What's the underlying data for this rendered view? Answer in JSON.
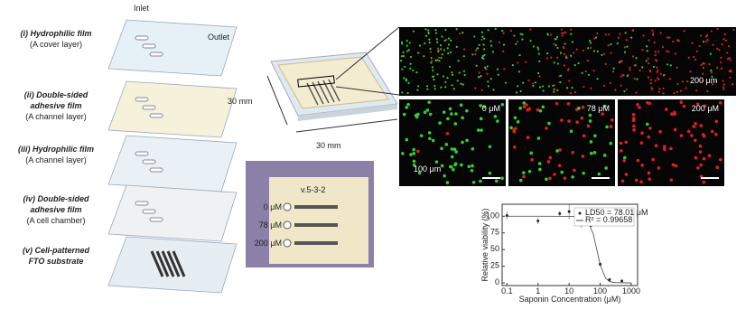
{
  "diagram": {
    "inlet": "Inlet",
    "outlet": "Outlet",
    "layers": [
      {
        "name": [
          "(i) Hydrophilic film"
        ],
        "desc": "(A cover layer)"
      },
      {
        "name": [
          "(ii) Double-sided",
          "adhesive film"
        ],
        "desc": "(A channel layer)"
      },
      {
        "name": [
          "(iii) Hydrophilic film"
        ],
        "desc": "(A channel layer)"
      },
      {
        "name": [
          "(iv) Double-sided",
          "adhesive film"
        ],
        "desc": "(A cell chamber)"
      },
      {
        "name": [
          "(v) Cell-patterned",
          "FTO substrate"
        ],
        "desc": ""
      }
    ]
  },
  "device": {
    "width": "30 mm",
    "depth": "30 mm"
  },
  "photo": {
    "code": "v.5-3-2",
    "labels": [
      "0 μM",
      "78 μM",
      "200 μM"
    ]
  },
  "micrographs": {
    "wide_scale": "200 μm",
    "panels": [
      "0 μM",
      "78 μM",
      "200 μM"
    ],
    "panel_scale": "100 μm"
  },
  "chart_data": {
    "type": "scatter",
    "xlabel": "Saponin Concentration (μM)",
    "ylabel": "Relative viability (%)",
    "xlog": true,
    "xlim": [
      0.07,
      1600
    ],
    "xticks": [
      0.1,
      1,
      10,
      100,
      1000
    ],
    "ylim": [
      -4,
      118
    ],
    "yticks": [
      0,
      25,
      50,
      75,
      100
    ],
    "series": [
      {
        "name": "LD50 = 78.01 μM",
        "color": "#222",
        "x": [
          0.1,
          1,
          5,
          10,
          25,
          50,
          100,
          200,
          500
        ],
        "values": [
          101,
          93,
          104,
          107,
          87,
          86,
          28,
          5,
          3
        ],
        "errors": [
          6,
          5,
          4,
          12,
          4,
          5,
          3,
          2,
          1
        ]
      },
      {
        "name": "R² = 0.99658",
        "color": "#444",
        "x": [
          0.1,
          1,
          10,
          20,
          40,
          60,
          78,
          100,
          150,
          200,
          300,
          1000
        ],
        "values": [
          100,
          100,
          99.9,
          99.6,
          94,
          73,
          50,
          27,
          7,
          2,
          0.5,
          0
        ]
      }
    ]
  }
}
